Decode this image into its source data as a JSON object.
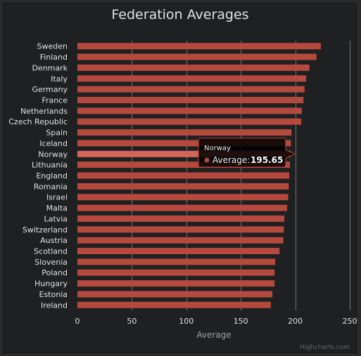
{
  "chart_data": {
    "type": "bar",
    "title": "Federation Averages",
    "xlabel": "",
    "ylabel": "Average",
    "ylim": [
      0,
      250
    ],
    "yticks": [
      0,
      50,
      100,
      150,
      200,
      250
    ],
    "grid": true,
    "categories": [
      "Sweden",
      "Finland",
      "Denmark",
      "Italy",
      "Germany",
      "France",
      "Netherlands",
      "Czech Republic",
      "Spain",
      "Iceland",
      "Norway",
      "Lithuania",
      "England",
      "Romania",
      "Israel",
      "Malta",
      "Latvia",
      "Switzerland",
      "Austria",
      "Scotland",
      "Slovenia",
      "Poland",
      "Hungary",
      "Estonia",
      "Ireland"
    ],
    "series": [
      {
        "values": [
          223.5,
          219.5,
          213.0,
          210.0,
          208.5,
          207.5,
          206.0,
          205.5,
          196.5,
          196.0,
          195.65,
          195.0,
          194.5,
          194.0,
          193.5,
          192.5,
          190.0,
          189.5,
          189.0,
          185.5,
          181.5,
          181.0,
          181.0,
          179.0,
          177.5
        ],
        "color": "#b5493d"
      }
    ],
    "highlight_color": "#d2675a",
    "highlighted_category": "Norway",
    "tooltip": {
      "series": "Norway",
      "label": "Average:",
      "value": "195.65"
    },
    "credits": "Highcharts.com"
  }
}
